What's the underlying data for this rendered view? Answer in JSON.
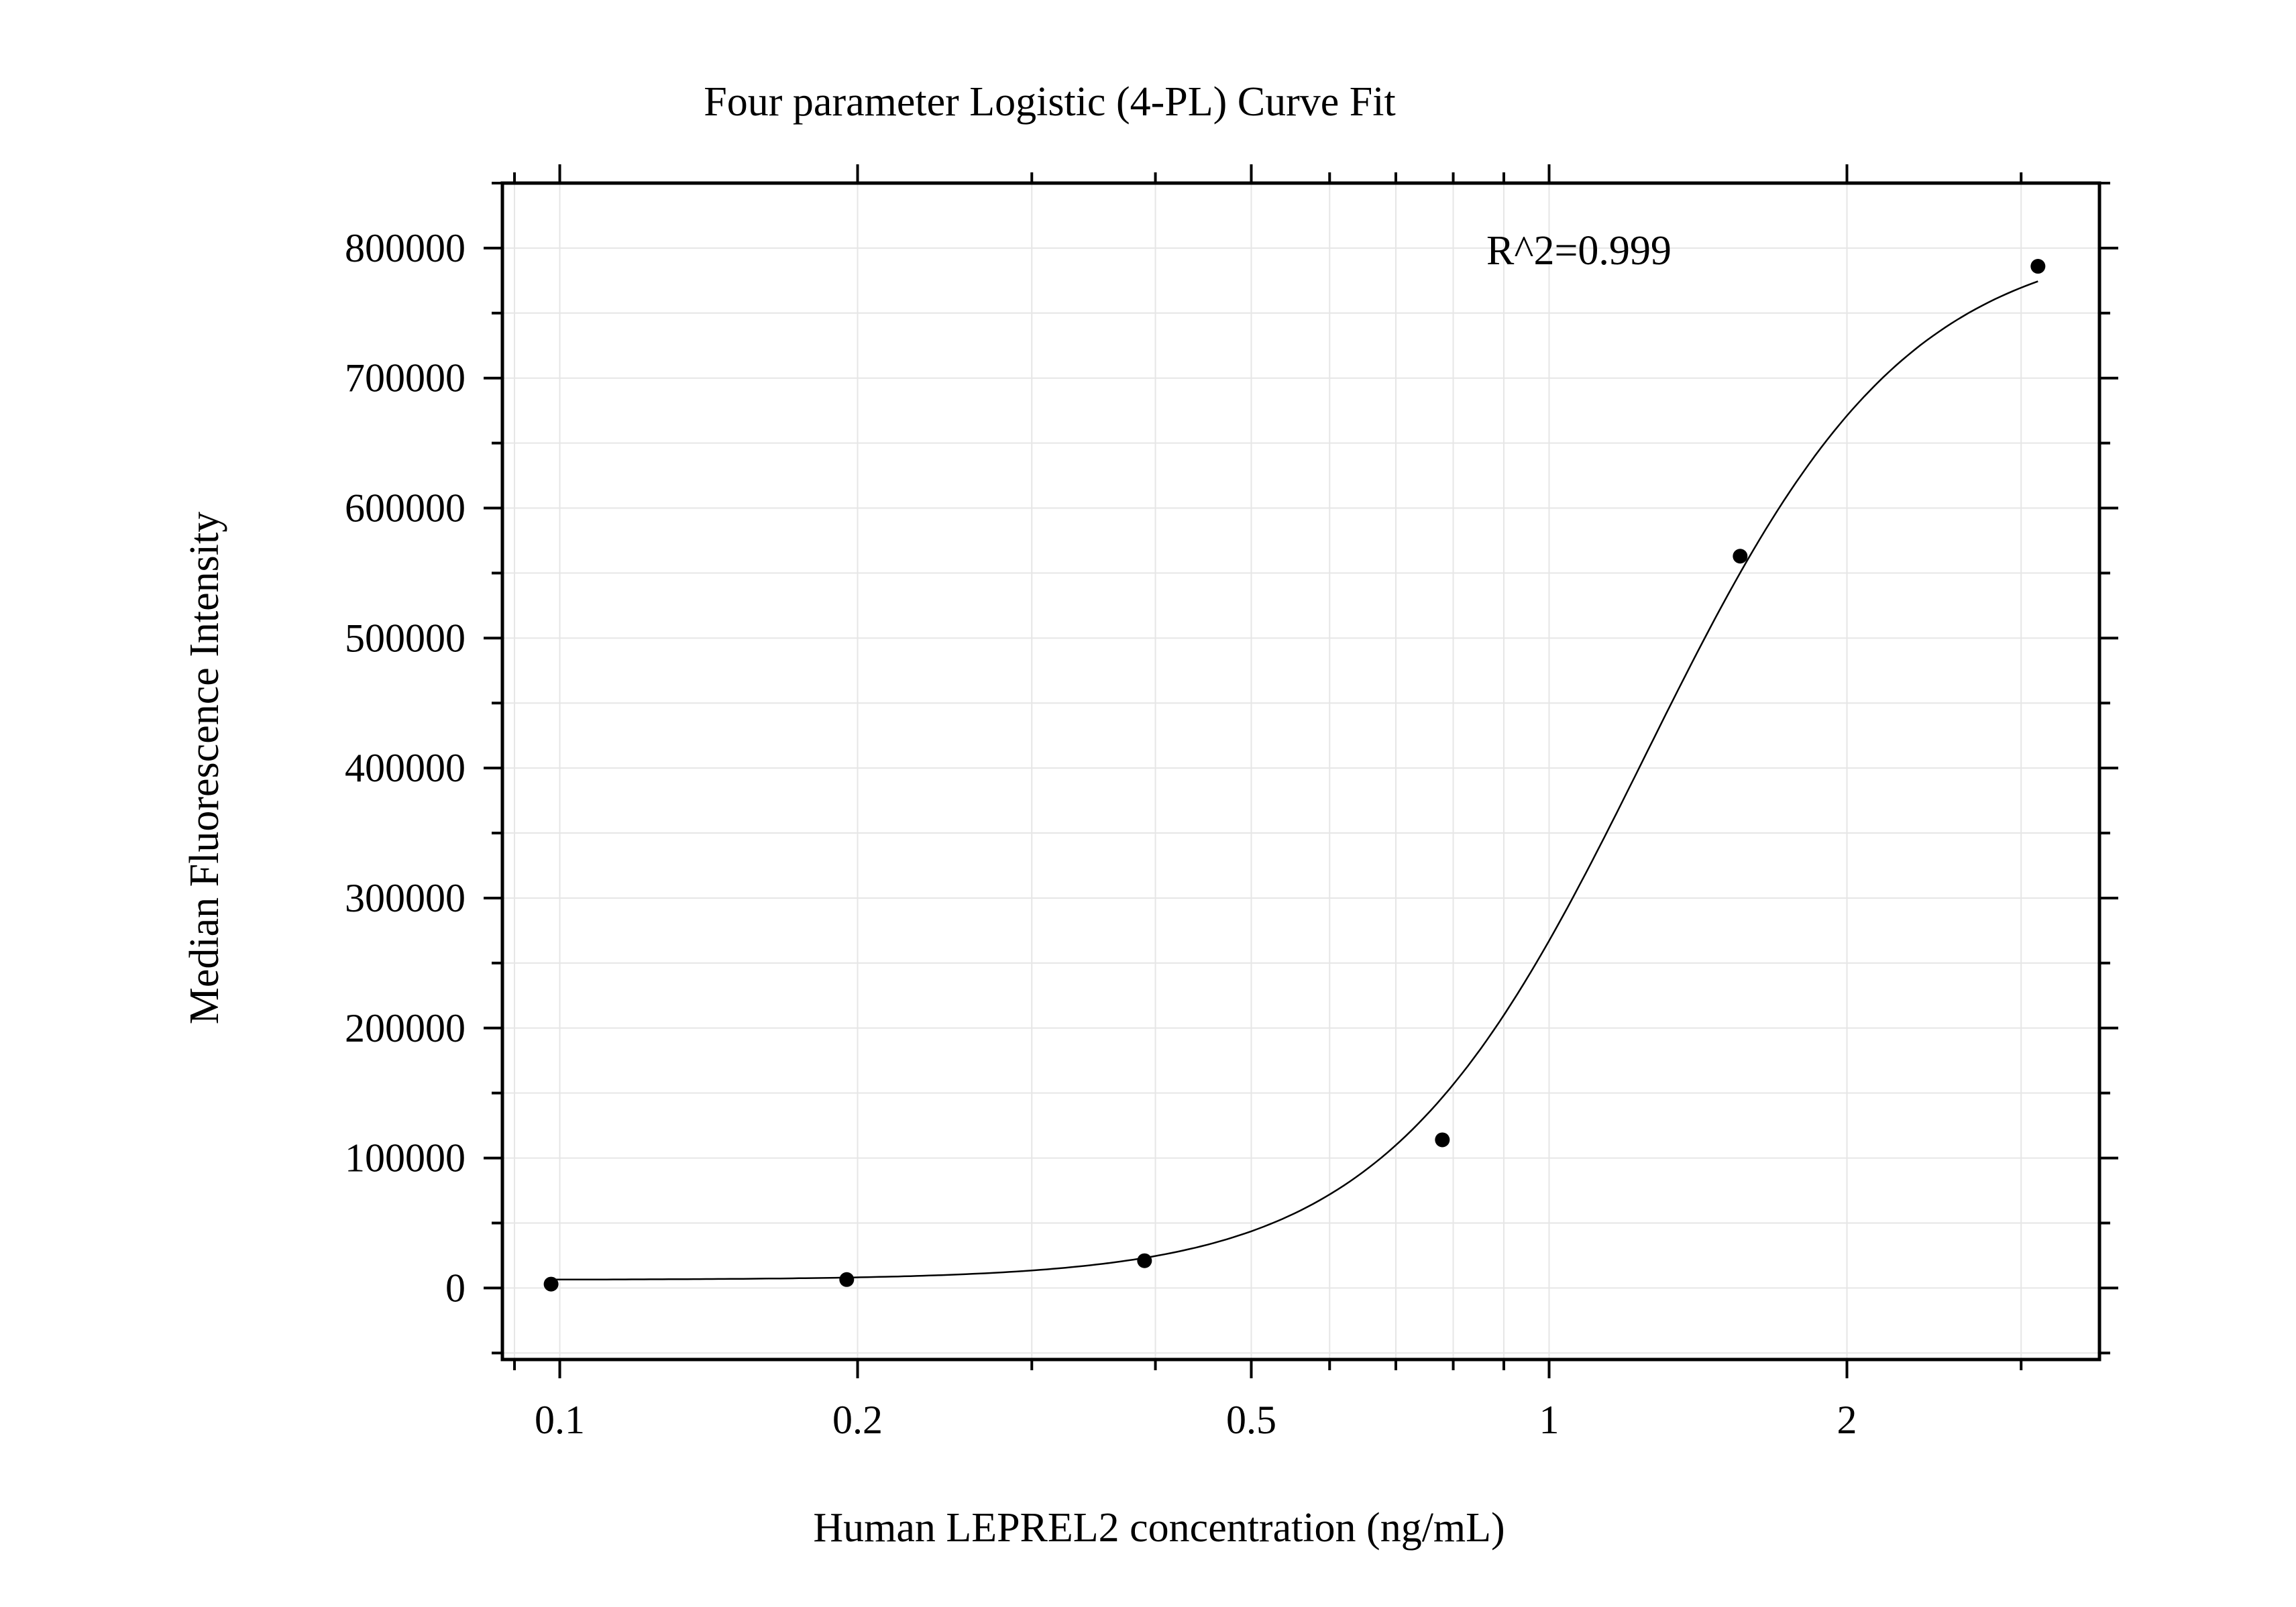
{
  "chart_data": {
    "type": "scatter",
    "title": "Four parameter Logistic (4-PL) Curve Fit",
    "xlabel": "Human LEPREL2 concentration (ng/mL)",
    "ylabel": "Median Fluorescence Intensity",
    "annotation": "R^2=0.999",
    "x_scale": "log",
    "xlim": [
      0.0875,
      3.6
    ],
    "ylim": [
      -55000,
      850000
    ],
    "x_ticks": [
      {
        "value": 0.1,
        "label": "0.1"
      },
      {
        "value": 0.2,
        "label": "0.2"
      },
      {
        "value": 0.5,
        "label": "0.5"
      },
      {
        "value": 1,
        "label": "1"
      },
      {
        "value": 2,
        "label": "2"
      }
    ],
    "y_ticks": [
      {
        "value": 0,
        "label": "0"
      },
      {
        "value": 100000,
        "label": "100000"
      },
      {
        "value": 200000,
        "label": "200000"
      },
      {
        "value": 300000,
        "label": "300000"
      },
      {
        "value": 400000,
        "label": "400000"
      },
      {
        "value": 500000,
        "label": "500000"
      },
      {
        "value": 600000,
        "label": "600000"
      },
      {
        "value": 700000,
        "label": "700000"
      },
      {
        "value": 800000,
        "label": "800000"
      }
    ],
    "grid": true,
    "points": {
      "x": [
        0.098,
        0.195,
        0.39,
        0.78,
        1.56,
        3.12
      ],
      "y": [
        3000,
        6500,
        21000,
        114000,
        563000,
        786000
      ]
    },
    "fit_curve": {
      "model": "4PL",
      "bottom": 6300,
      "top": 812000,
      "ec50": 1.25,
      "hill": 3.3,
      "x_range": [
        0.098,
        3.12
      ]
    },
    "colors": {
      "points": "#000000",
      "curve": "#000000",
      "grid": "#e6e6e6",
      "axes": "#000000"
    }
  }
}
